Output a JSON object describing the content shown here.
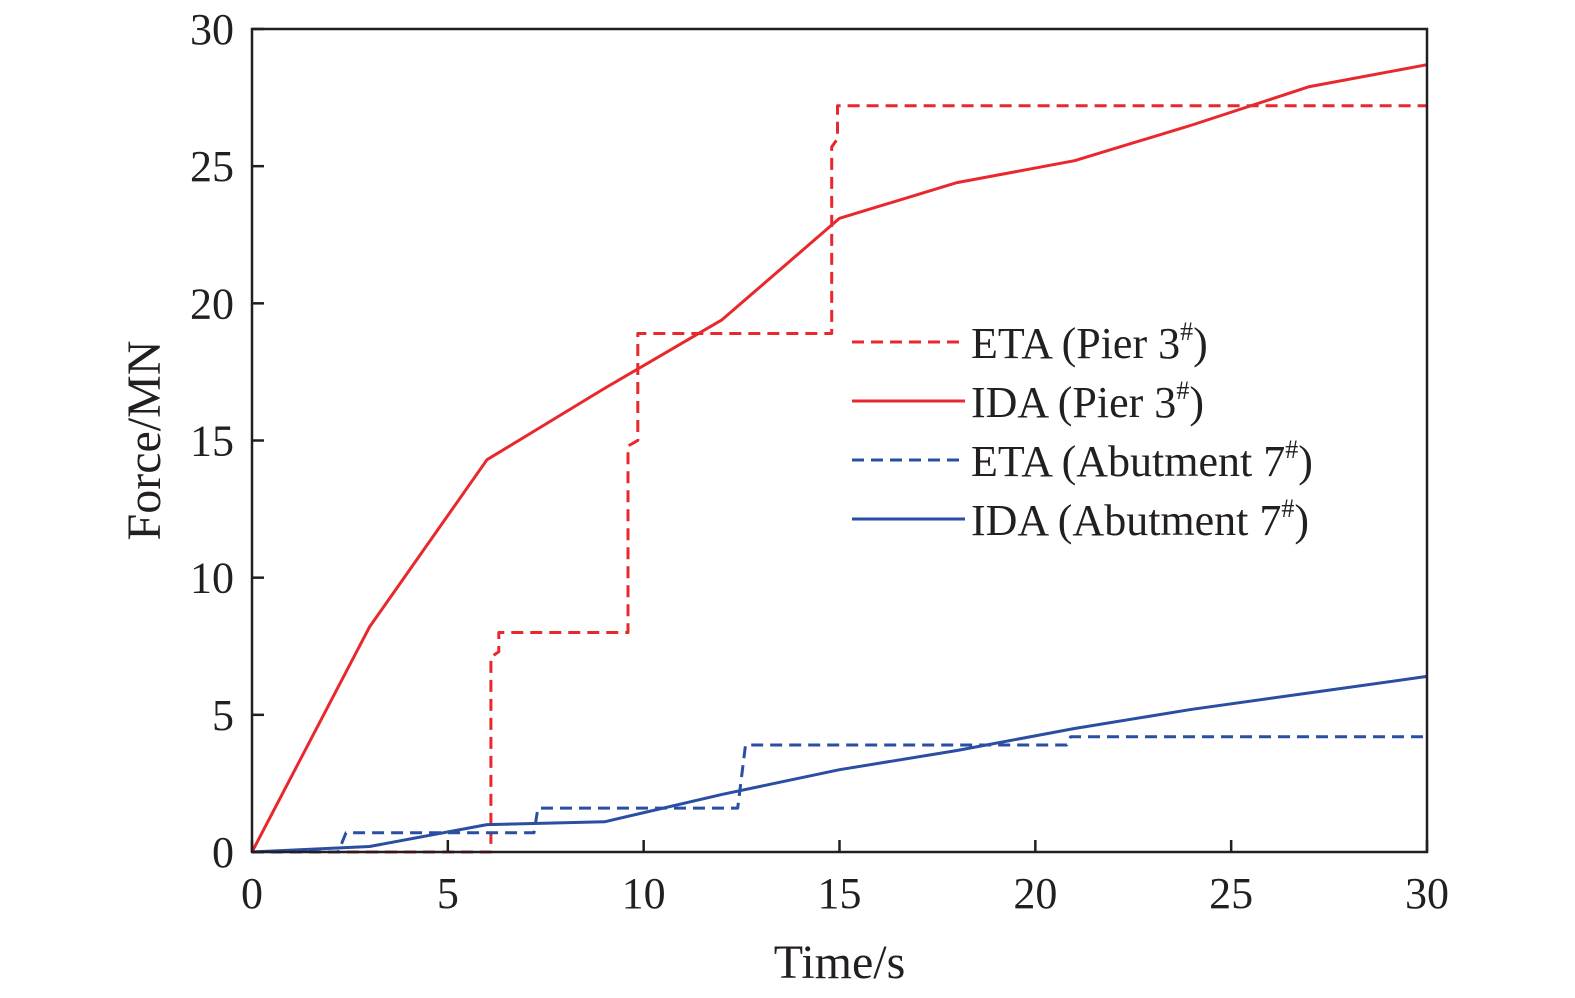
{
  "chart_data": {
    "type": "line",
    "title": "",
    "xlabel": "Time/s",
    "ylabel": "Force/MN",
    "xlim": [
      0,
      30
    ],
    "ylim": [
      0,
      30
    ],
    "xticks": [
      0,
      5,
      10,
      15,
      20,
      25,
      30
    ],
    "yticks": [
      0,
      5,
      10,
      15,
      20,
      25,
      30
    ],
    "grid": false,
    "legend_position": "center-right",
    "series": [
      {
        "name": "ETA (Pier 3",
        "name_superscript": "#",
        "name_suffix": ")",
        "color": "#e8282d",
        "dash": "dashed",
        "points": [
          [
            0,
            0
          ],
          [
            6.1,
            0
          ],
          [
            6.1,
            7.1
          ],
          [
            6.3,
            7.3
          ],
          [
            6.3,
            8.0
          ],
          [
            9.6,
            8.0
          ],
          [
            9.6,
            14.8
          ],
          [
            9.85,
            15.0
          ],
          [
            9.85,
            18.9
          ],
          [
            14.8,
            18.9
          ],
          [
            14.8,
            25.7
          ],
          [
            14.95,
            26.0
          ],
          [
            14.95,
            27.2
          ],
          [
            30,
            27.2
          ]
        ]
      },
      {
        "name": "IDA (Pier 3",
        "name_superscript": "#",
        "name_suffix": ")",
        "color": "#e8282d",
        "dash": "solid",
        "points": [
          [
            0,
            0
          ],
          [
            3,
            8.2
          ],
          [
            6,
            14.3
          ],
          [
            9,
            16.9
          ],
          [
            12,
            19.4
          ],
          [
            15,
            23.1
          ],
          [
            18,
            24.4
          ],
          [
            21,
            25.2
          ],
          [
            24,
            26.5
          ],
          [
            27,
            27.9
          ],
          [
            30,
            28.7
          ]
        ]
      },
      {
        "name": "ETA (Abutment 7",
        "name_superscript": "#",
        "name_suffix": ")",
        "color": "#2a4ea2",
        "dash": "dashed",
        "points": [
          [
            0,
            0
          ],
          [
            2.2,
            0
          ],
          [
            2.4,
            0.7
          ],
          [
            7.2,
            0.7
          ],
          [
            7.3,
            1.6
          ],
          [
            12.4,
            1.6
          ],
          [
            12.6,
            3.9
          ],
          [
            20.8,
            3.9
          ],
          [
            20.9,
            4.2
          ],
          [
            30,
            4.2
          ]
        ]
      },
      {
        "name": "IDA (Abutment 7",
        "name_superscript": "#",
        "name_suffix": ")",
        "color": "#2a4ea2",
        "dash": "solid",
        "points": [
          [
            0,
            0
          ],
          [
            3,
            0.2
          ],
          [
            6,
            1.0
          ],
          [
            9,
            1.1
          ],
          [
            12,
            2.1
          ],
          [
            15,
            3.0
          ],
          [
            18,
            3.7
          ],
          [
            21,
            4.5
          ],
          [
            24,
            5.2
          ],
          [
            27,
            5.8
          ],
          [
            30,
            6.4
          ]
        ]
      }
    ]
  }
}
